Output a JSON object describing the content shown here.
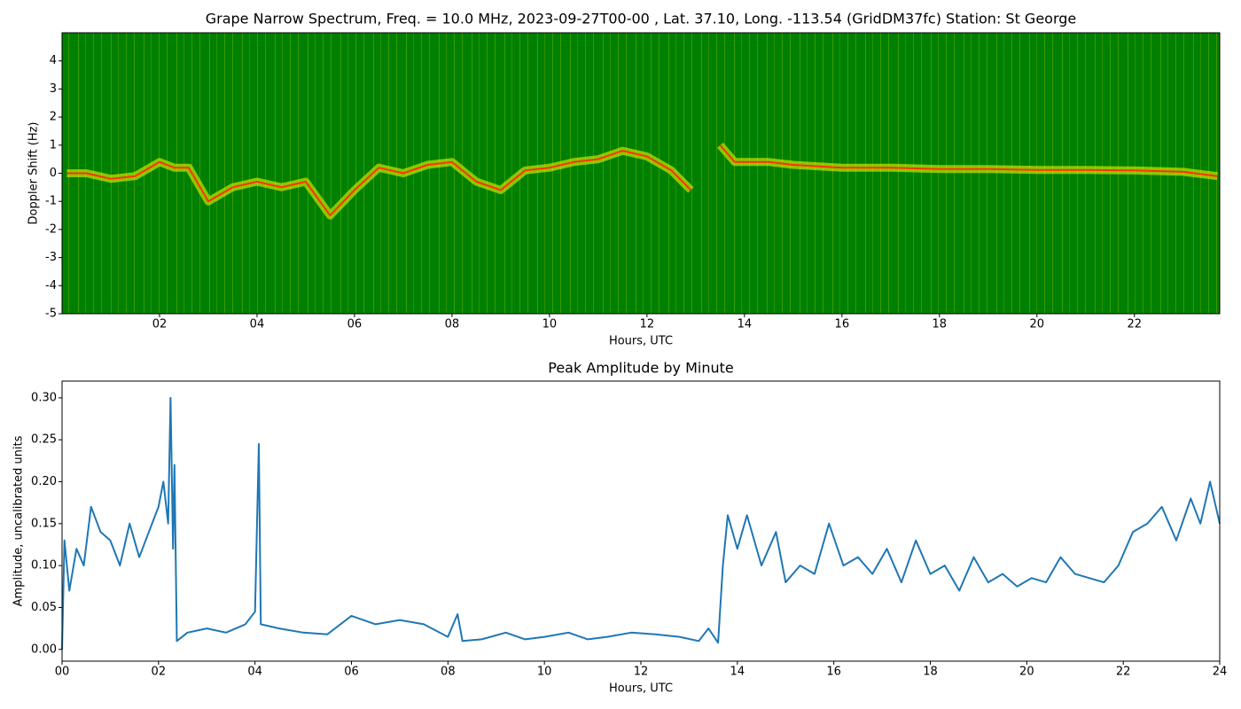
{
  "chart_data": [
    {
      "type": "spectrogram",
      "title": "Grape Narrow Spectrum, Freq. = 10.0 MHz, 2023-09-27T00-00 , Lat.  37.10, Long. -113.54 (GridDM37fc) Station: St George",
      "xlabel": "Hours, UTC",
      "ylabel": "Doppler Shift (Hz)",
      "background_color": "#008000",
      "color": "#ffff00",
      "peak_color": "#ff3300",
      "x": [
        0.1,
        0.5,
        1.0,
        1.5,
        2.0,
        2.3,
        2.6,
        3.0,
        3.5,
        4.0,
        4.5,
        5.0,
        5.5,
        6.0,
        6.5,
        7.0,
        7.5,
        8.0,
        8.5,
        9.0,
        9.5,
        10.0,
        10.5,
        11.0,
        11.5,
        12.0,
        12.5,
        12.9,
        13.2,
        13.5,
        13.8,
        14.5,
        15.0,
        16.0,
        17.0,
        18.0,
        19.0,
        20.0,
        21.0,
        22.0,
        23.0,
        23.7
      ],
      "values": [
        0,
        0,
        -0.2,
        -0.1,
        0.4,
        0.2,
        0.2,
        -1,
        -0.5,
        -0.3,
        -0.5,
        -0.3,
        -1.5,
        -0.6,
        0.2,
        0,
        0.3,
        0.4,
        -0.3,
        -0.6,
        0.1,
        0.2,
        0.4,
        0.5,
        0.8,
        0.6,
        0.1,
        -0.6,
        null,
        1.0,
        0.4,
        0.4,
        0.3,
        0.2,
        0.2,
        0.15,
        0.15,
        0.12,
        0.12,
        0.1,
        0.05,
        -0.1
      ],
      "xlim": [
        0,
        23.75
      ],
      "ylim": [
        -5,
        5
      ],
      "xticks": [
        {
          "value": 2,
          "label": "02"
        },
        {
          "value": 4,
          "label": "04"
        },
        {
          "value": 6,
          "label": "06"
        },
        {
          "value": 8,
          "label": "08"
        },
        {
          "value": 10,
          "label": "10"
        },
        {
          "value": 12,
          "label": "12"
        },
        {
          "value": 14,
          "label": "14"
        },
        {
          "value": 16,
          "label": "16"
        },
        {
          "value": 18,
          "label": "18"
        },
        {
          "value": 20,
          "label": "20"
        },
        {
          "value": 22,
          "label": "22"
        }
      ],
      "yticks": [
        -5,
        -4,
        -3,
        -2,
        -1,
        0,
        1,
        2,
        3,
        4
      ]
    },
    {
      "type": "line",
      "title": "Peak Amplitude by Minute",
      "xlabel": "Hours, UTC",
      "ylabel": "Amplitude, uncalibrated units",
      "color": "#1f77b4",
      "x": [
        0,
        0.05,
        0.15,
        0.3,
        0.45,
        0.6,
        0.8,
        1.0,
        1.2,
        1.4,
        1.6,
        1.8,
        2.0,
        2.1,
        2.2,
        2.25,
        2.3,
        2.33,
        2.38,
        2.6,
        3.0,
        3.4,
        3.8,
        4.0,
        4.08,
        4.12,
        4.5,
        5.0,
        5.5,
        6.0,
        6.5,
        7.0,
        7.5,
        8.0,
        8.2,
        8.3,
        8.7,
        9.2,
        9.6,
        10.0,
        10.5,
        10.9,
        11.3,
        11.8,
        12.3,
        12.8,
        13.2,
        13.4,
        13.6,
        13.7,
        13.8,
        14.0,
        14.2,
        14.5,
        14.8,
        15.0,
        15.3,
        15.6,
        15.9,
        16.2,
        16.5,
        16.8,
        17.1,
        17.4,
        17.7,
        18.0,
        18.3,
        18.6,
        18.9,
        19.2,
        19.5,
        19.8,
        20.1,
        20.4,
        20.7,
        21.0,
        21.3,
        21.6,
        21.9,
        22.2,
        22.5,
        22.8,
        23.1,
        23.4,
        23.6,
        23.8,
        24.0
      ],
      "values": [
        0.0,
        0.13,
        0.07,
        0.12,
        0.1,
        0.17,
        0.14,
        0.13,
        0.1,
        0.15,
        0.11,
        0.14,
        0.17,
        0.2,
        0.15,
        0.3,
        0.12,
        0.22,
        0.01,
        0.02,
        0.025,
        0.02,
        0.03,
        0.045,
        0.245,
        0.03,
        0.025,
        0.02,
        0.018,
        0.04,
        0.03,
        0.035,
        0.03,
        0.015,
        0.042,
        0.01,
        0.012,
        0.02,
        0.012,
        0.015,
        0.02,
        0.012,
        0.015,
        0.02,
        0.018,
        0.015,
        0.01,
        0.025,
        0.008,
        0.1,
        0.16,
        0.12,
        0.16,
        0.1,
        0.14,
        0.08,
        0.1,
        0.09,
        0.15,
        0.1,
        0.11,
        0.09,
        0.12,
        0.08,
        0.13,
        0.09,
        0.1,
        0.07,
        0.11,
        0.08,
        0.09,
        0.075,
        0.085,
        0.08,
        0.11,
        0.09,
        0.085,
        0.08,
        0.1,
        0.14,
        0.15,
        0.17,
        0.13,
        0.18,
        0.15,
        0.2,
        0.15
      ],
      "xlim": [
        0,
        24
      ],
      "ylim": [
        -0.014,
        0.32
      ],
      "xticks": [
        {
          "value": 0,
          "label": "00"
        },
        {
          "value": 2,
          "label": "02"
        },
        {
          "value": 4,
          "label": "04"
        },
        {
          "value": 6,
          "label": "06"
        },
        {
          "value": 8,
          "label": "08"
        },
        {
          "value": 10,
          "label": "10"
        },
        {
          "value": 12,
          "label": "12"
        },
        {
          "value": 14,
          "label": "14"
        },
        {
          "value": 16,
          "label": "16"
        },
        {
          "value": 18,
          "label": "18"
        },
        {
          "value": 20,
          "label": "20"
        },
        {
          "value": 22,
          "label": "22"
        },
        {
          "value": 24,
          "label": "24"
        }
      ],
      "yticks": [
        {
          "value": 0,
          "label": "0.00"
        },
        0.05,
        {
          "value": 0.1,
          "label": "0.10"
        },
        0.15,
        {
          "value": 0.2,
          "label": "0.20"
        },
        0.25,
        {
          "value": 0.3,
          "label": "0.30"
        }
      ]
    }
  ]
}
